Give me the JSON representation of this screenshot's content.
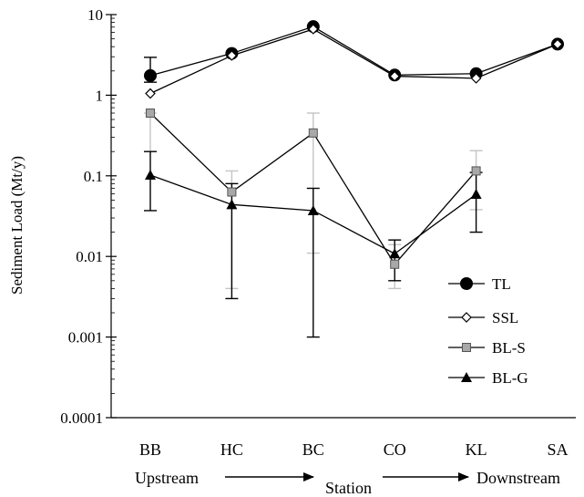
{
  "chart_data": {
    "type": "line",
    "xlabel": "Station",
    "ylabel": "Sediment Load (Mt/y)",
    "yscale": "log",
    "ylim": [
      0.0001,
      10
    ],
    "y_ticks": [
      {
        "value": 10,
        "label": "10"
      },
      {
        "value": 1,
        "label": "1"
      },
      {
        "value": 0.1,
        "label": "0.1"
      },
      {
        "value": 0.01,
        "label": "0.01"
      },
      {
        "value": 0.001,
        "label": "0.001"
      },
      {
        "value": 0.0001,
        "label": "0.0001"
      }
    ],
    "categories": [
      "BB",
      "HC",
      "BC",
      "CO",
      "KL",
      "SA"
    ],
    "direction": {
      "start": "Upstream",
      "end": "Downstream"
    },
    "grid": false,
    "legend_position": "right",
    "series": [
      {
        "name": "TL",
        "marker": "circle",
        "color": "#000000",
        "values": [
          1.75,
          3.3,
          7.1,
          1.78,
          1.85,
          4.3
        ],
        "err_low": [
          1.45,
          null,
          null,
          null,
          null,
          null
        ],
        "err_high": [
          2.95,
          null,
          null,
          null,
          null,
          null
        ]
      },
      {
        "name": "SSL",
        "marker": "diamond",
        "color": "#000000",
        "values": [
          1.05,
          3.1,
          6.6,
          1.72,
          1.62,
          4.3
        ]
      },
      {
        "name": "BL-S",
        "marker": "square",
        "color": "#9a9a9a",
        "values": [
          0.6,
          0.063,
          0.34,
          0.008,
          0.115,
          null
        ],
        "err_low": [
          0.2,
          0.004,
          0.011,
          0.004,
          0.038,
          null
        ],
        "err_high": [
          0.6,
          0.115,
          0.6,
          0.014,
          0.205,
          null
        ]
      },
      {
        "name": "BL-G",
        "marker": "triangle",
        "color": "#000000",
        "values": [
          0.102,
          0.044,
          0.037,
          0.0108,
          0.059,
          null
        ],
        "err_low": [
          0.037,
          0.003,
          0.001,
          0.005,
          0.02,
          null
        ],
        "err_high": [
          0.2,
          0.08,
          0.07,
          0.016,
          0.11,
          null
        ]
      }
    ]
  }
}
